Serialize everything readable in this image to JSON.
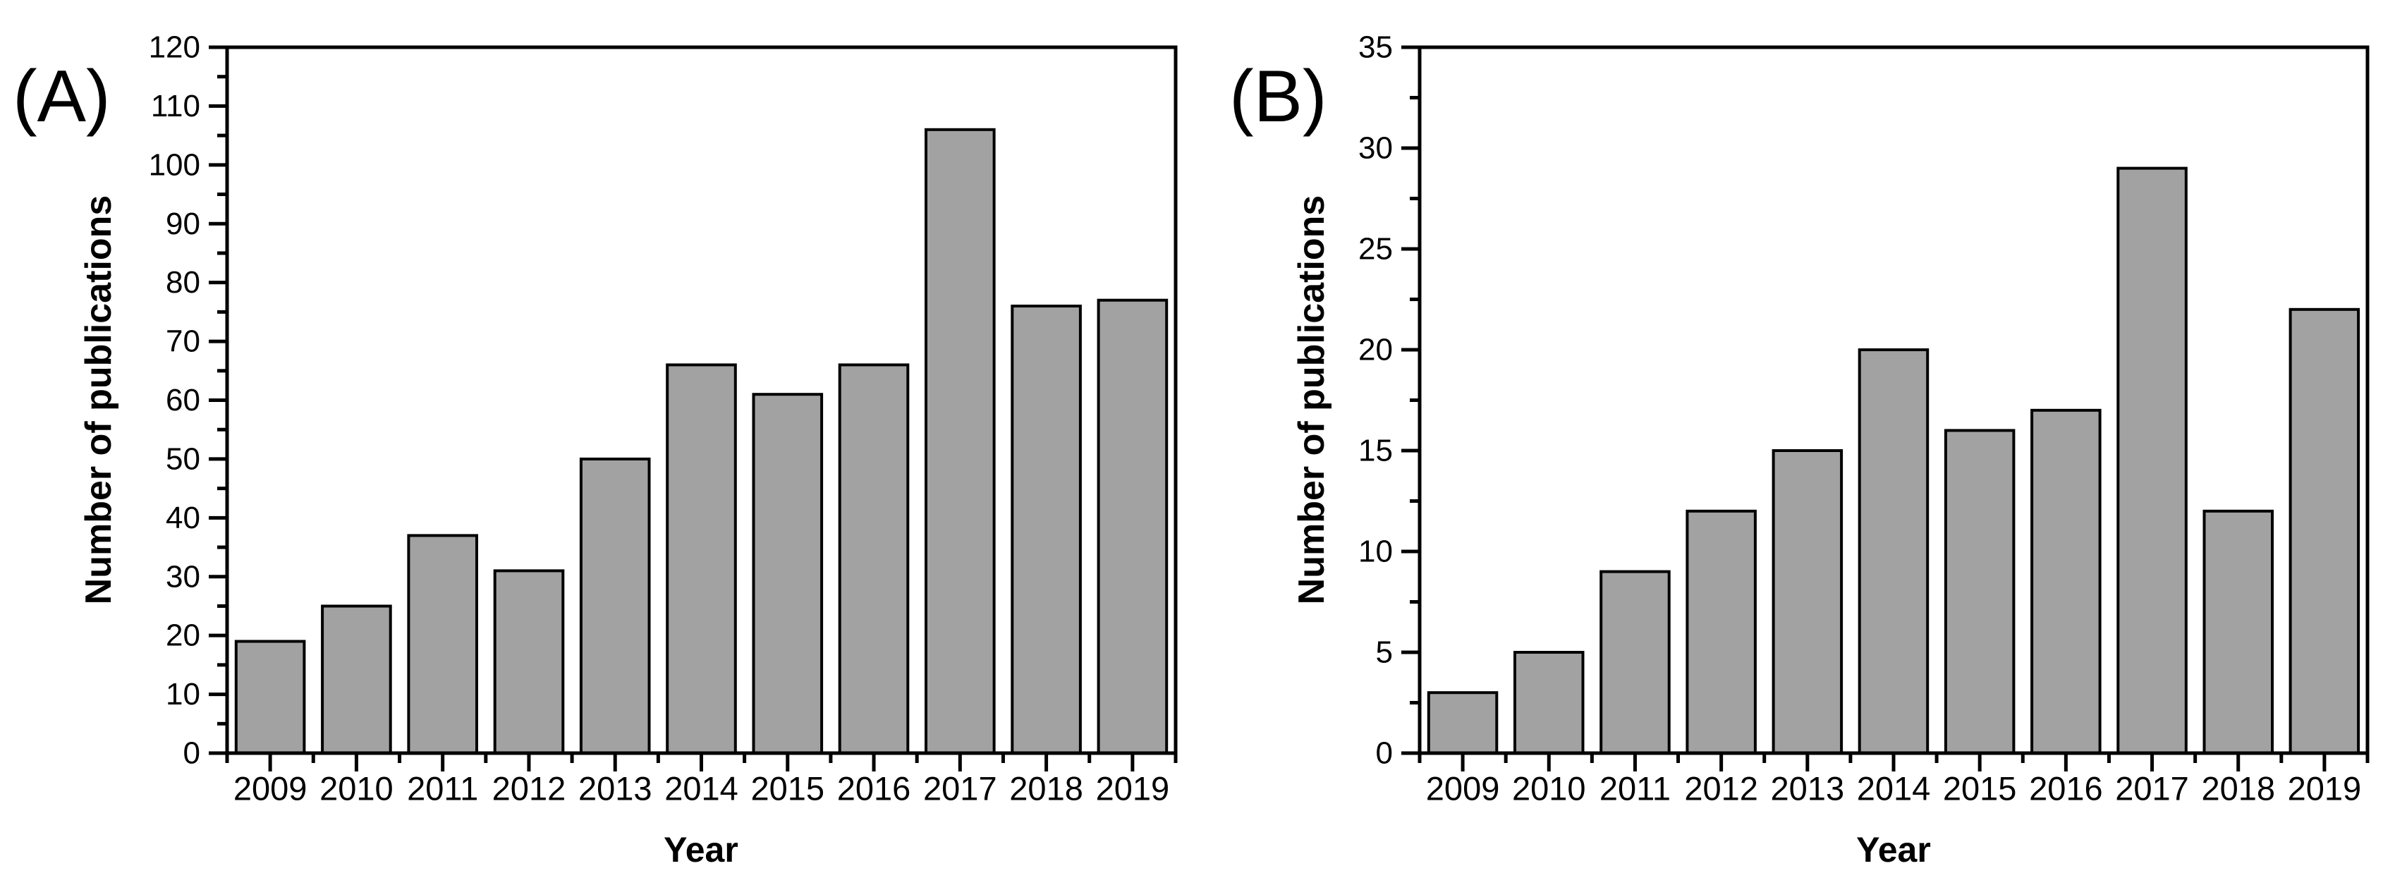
{
  "figure": {
    "description_visible_text_only": "Two-panel bar chart figure",
    "panel_tags": [
      "(A)",
      "(B)"
    ]
  },
  "chart_data": [
    {
      "type": "bar",
      "title": "(A)",
      "categories": [
        "2009",
        "2010",
        "2011",
        "2012",
        "2013",
        "2014",
        "2015",
        "2016",
        "2017",
        "2018",
        "2019"
      ],
      "values": [
        19,
        25,
        37,
        31,
        50,
        66,
        61,
        66,
        106,
        76,
        77
      ],
      "xlabel": "Year",
      "ylabel": "Number of publications",
      "ylim": [
        0,
        120
      ],
      "y_major_step": 10,
      "y_minor_step": 5,
      "y_tick_labels": [
        "0",
        "10",
        "20",
        "30",
        "40",
        "50",
        "60",
        "70",
        "80",
        "90",
        "100",
        "110",
        "120"
      ],
      "grid": false,
      "legend": null,
      "bar_fill": "#a2a2a2",
      "bar_stroke": "#000000",
      "axis_color": "#000000"
    },
    {
      "type": "bar",
      "title": "(B)",
      "categories": [
        "2009",
        "2010",
        "2011",
        "2012",
        "2013",
        "2014",
        "2015",
        "2016",
        "2017",
        "2018",
        "2019"
      ],
      "values": [
        3,
        5,
        9,
        12,
        15,
        20,
        16,
        17,
        29,
        12,
        22
      ],
      "xlabel": "Year",
      "ylabel": "Number of publications",
      "ylim": [
        0,
        35
      ],
      "y_major_step": 5,
      "y_minor_step": 2.5,
      "y_tick_labels": [
        "0",
        "5",
        "10",
        "15",
        "20",
        "25",
        "30",
        "35"
      ],
      "grid": false,
      "legend": null,
      "bar_fill": "#a2a2a2",
      "bar_stroke": "#000000",
      "axis_color": "#000000"
    }
  ]
}
